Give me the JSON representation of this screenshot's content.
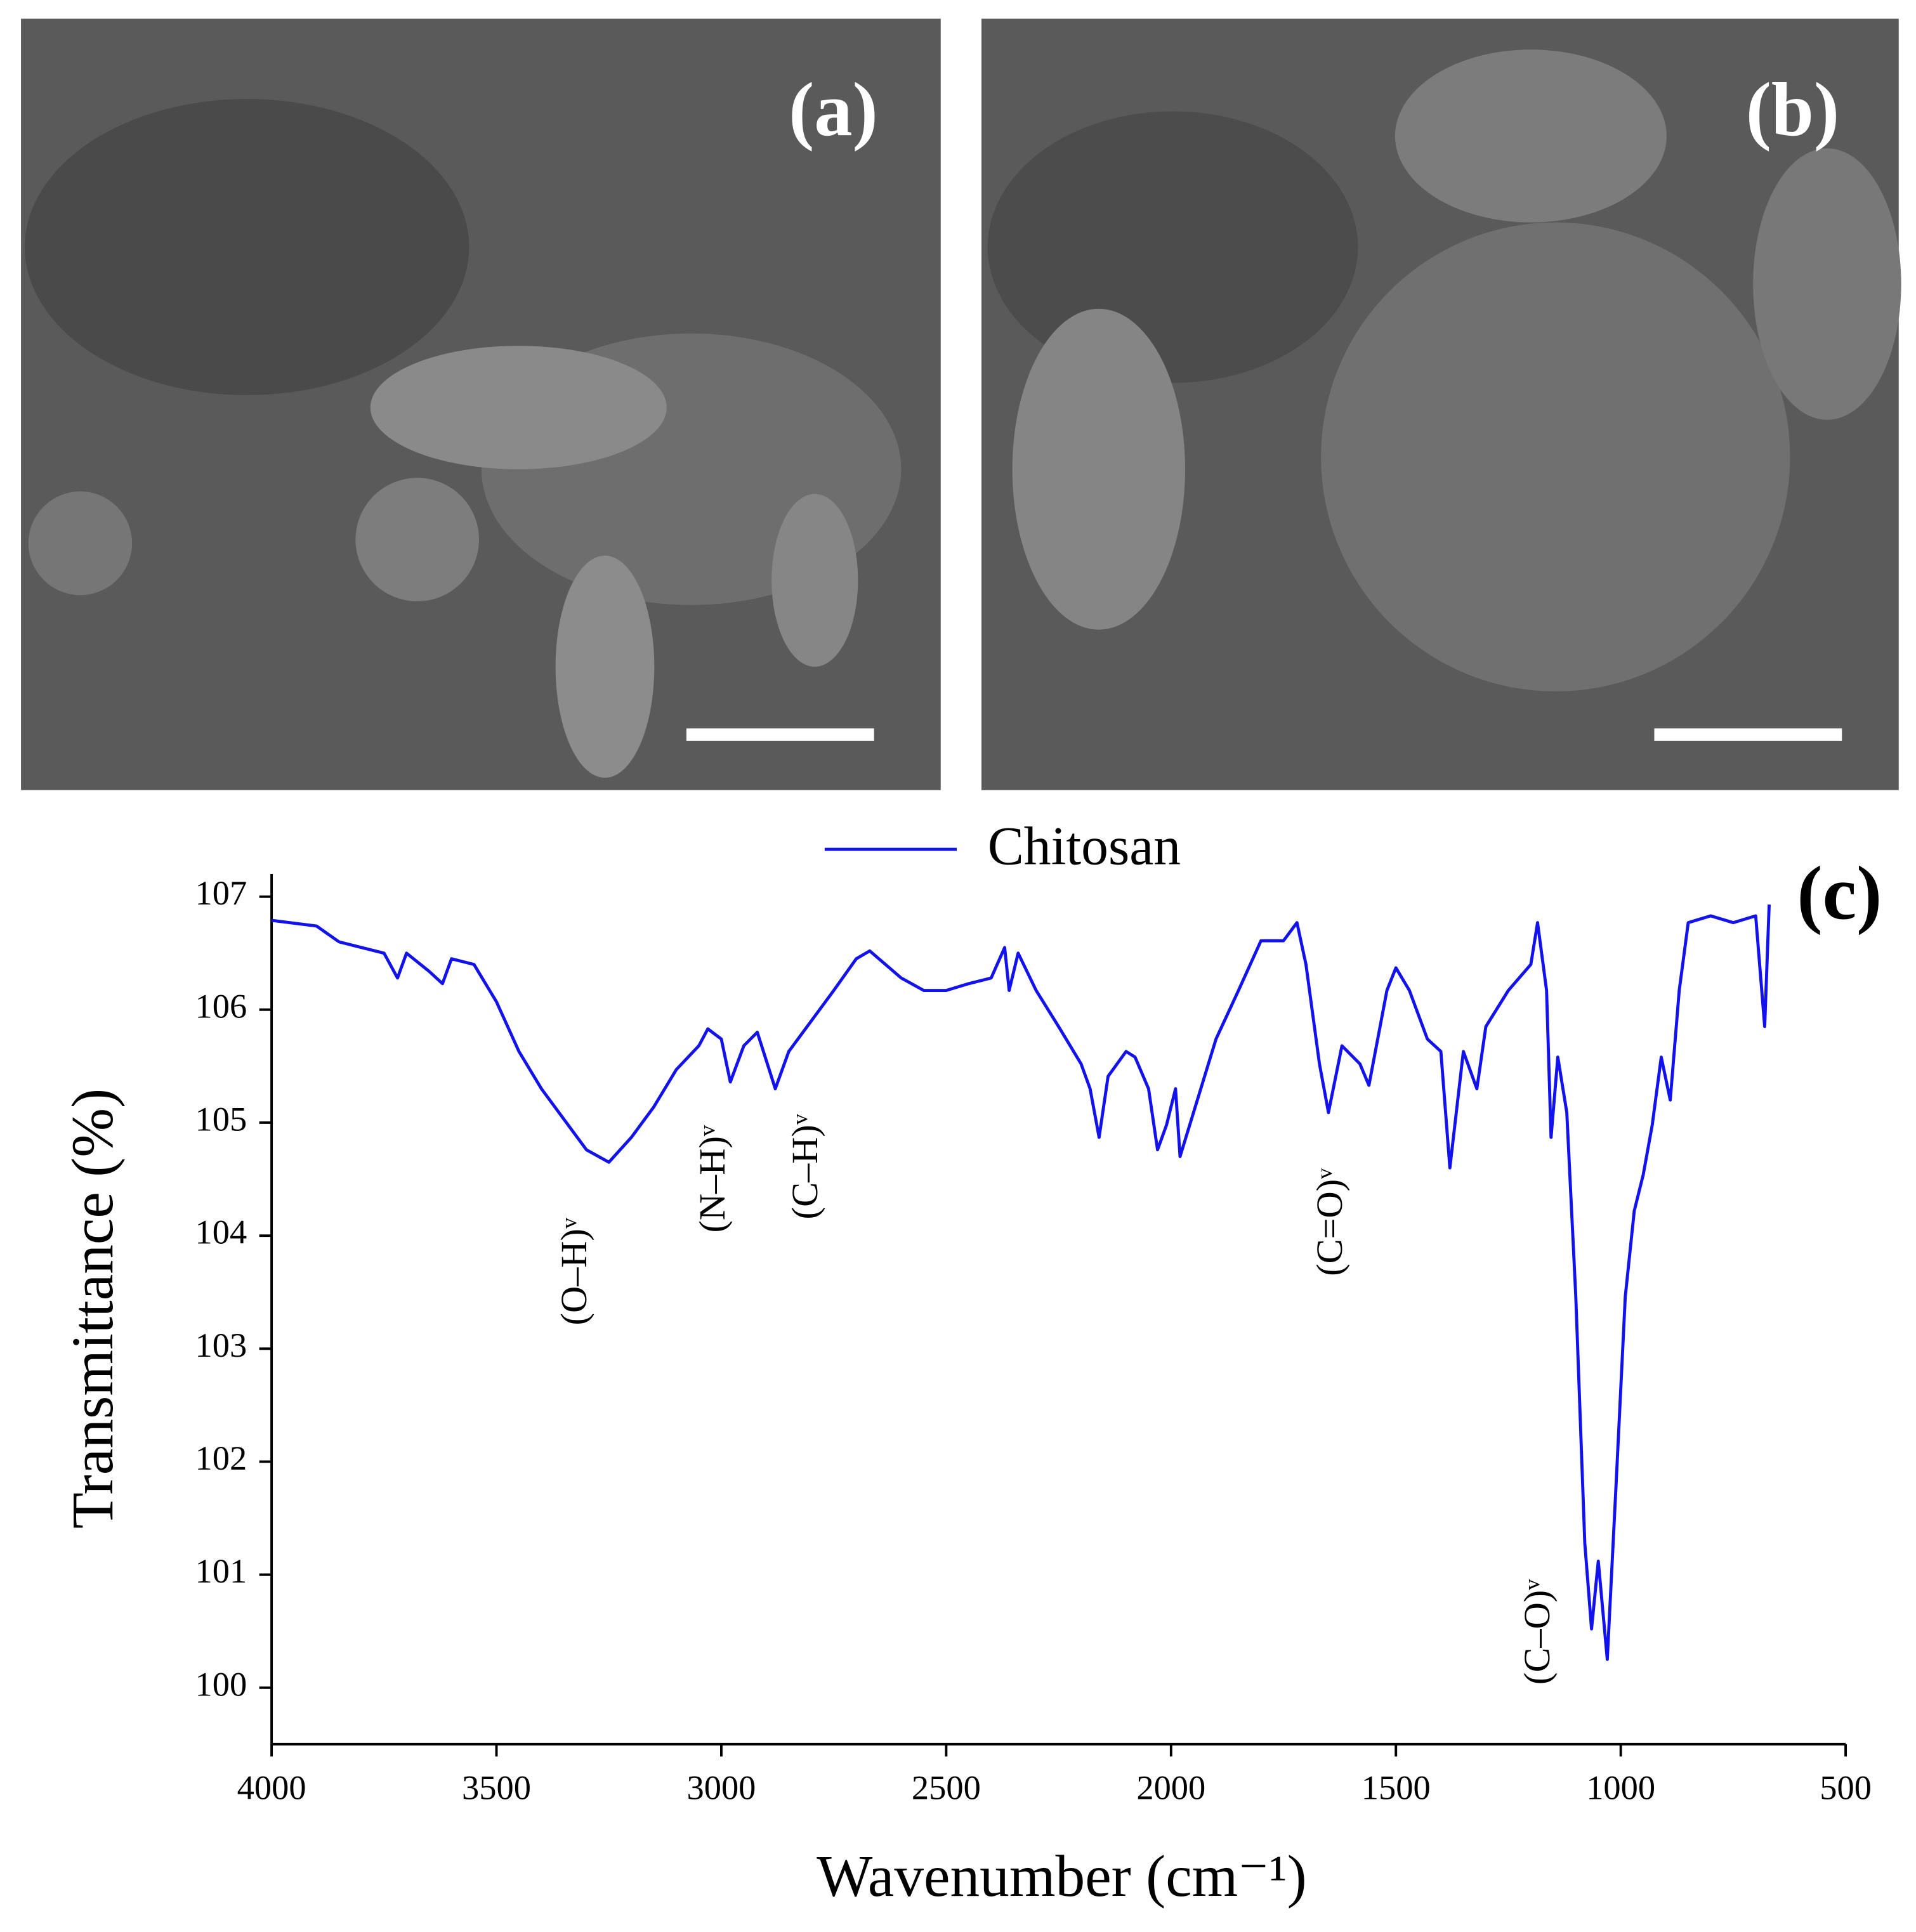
{
  "images": [
    {
      "label": "(a)"
    },
    {
      "label": "(b)"
    }
  ],
  "chart_data": {
    "type": "line",
    "panel_label": "(c)",
    "x_label": "Wavenumber  (cm⁻¹)",
    "y_label": "Transmittance  (%)",
    "annotations": [
      "(O–H)ᵛ",
      "(N–H)ᵛ",
      "(C–H)ᵛ",
      "(C=O)ᵛ",
      "(C–O)ᵛ"
    ],
    "x": [
      4000,
      3900,
      3850,
      3800,
      3750,
      3720,
      3700,
      3650,
      3620,
      3600,
      3550,
      3500,
      3450,
      3400,
      3350,
      3300,
      3250,
      3200,
      3150,
      3100,
      3050,
      3030,
      3000,
      2980,
      2950,
      2920,
      2880,
      2850,
      2800,
      2750,
      2700,
      2670,
      2600,
      2550,
      2500,
      2450,
      2400,
      2370,
      2360,
      2340,
      2300,
      2250,
      2200,
      2180,
      2160,
      2140,
      2100,
      2080,
      2050,
      2030,
      2010,
      1990,
      1980,
      1950,
      1900,
      1850,
      1800,
      1750,
      1720,
      1700,
      1670,
      1650,
      1620,
      1580,
      1560,
      1520,
      1500,
      1470,
      1430,
      1400,
      1380,
      1350,
      1320,
      1300,
      1250,
      1200,
      1185,
      1165,
      1155,
      1140,
      1120,
      1100,
      1080,
      1065,
      1050,
      1030,
      1010,
      990,
      970,
      950,
      930,
      910,
      890,
      870,
      850,
      800,
      750,
      700,
      680,
      670
    ],
    "series": [
      {
        "name": "Chitosan",
        "color": "#1212ee",
        "values": [
          106.79,
          106.74,
          106.6,
          106.55,
          106.5,
          106.28,
          106.5,
          106.34,
          106.23,
          106.45,
          106.4,
          106.07,
          105.63,
          105.3,
          105.03,
          104.76,
          104.65,
          104.87,
          105.14,
          105.47,
          105.68,
          105.83,
          105.74,
          105.36,
          105.68,
          105.8,
          105.3,
          105.63,
          105.9,
          106.17,
          106.45,
          106.52,
          106.28,
          106.17,
          106.17,
          106.23,
          106.28,
          106.55,
          106.17,
          106.5,
          106.17,
          105.85,
          105.52,
          105.3,
          104.87,
          105.41,
          105.63,
          105.58,
          105.3,
          104.76,
          104.98,
          105.3,
          104.7,
          105.09,
          105.74,
          106.17,
          106.61,
          106.61,
          106.77,
          106.4,
          105.52,
          105.09,
          105.68,
          105.52,
          105.33,
          106.17,
          106.37,
          106.17,
          105.74,
          105.63,
          104.6,
          105.63,
          105.3,
          105.85,
          106.17,
          106.4,
          106.77,
          106.17,
          104.87,
          105.58,
          105.09,
          103.46,
          101.28,
          100.52,
          101.12,
          100.25,
          101.83,
          103.46,
          104.22,
          104.54,
          104.98,
          105.58,
          105.2,
          106.17,
          106.77,
          106.83,
          106.77,
          106.83,
          105.85,
          106.93
        ]
      }
    ],
    "xlim": [
      4000,
      500
    ],
    "ylim": [
      99.5,
      107.2
    ],
    "xticks": [
      4000,
      3500,
      3000,
      2500,
      2000,
      1500,
      1000,
      500
    ],
    "yticks": [
      100,
      101,
      102,
      103,
      104,
      105,
      106,
      107
    ],
    "grid": false,
    "legend": "top"
  }
}
